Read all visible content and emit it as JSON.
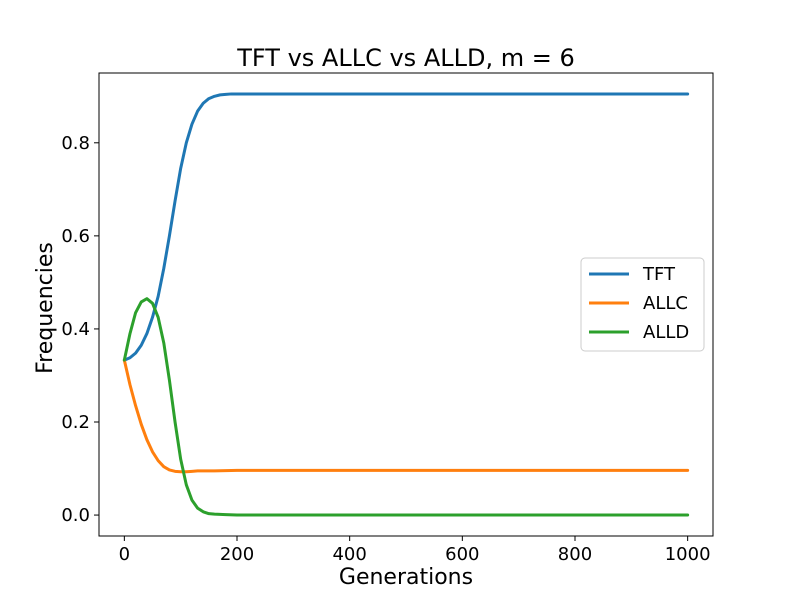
{
  "chart_data": {
    "type": "line",
    "title": "TFT vs ALLC vs ALLD, m = 6",
    "xlabel": "Generations",
    "ylabel": "Frequencies",
    "xlim": [
      -45,
      1045
    ],
    "ylim": [
      -0.045,
      0.95
    ],
    "xticks": [
      0,
      200,
      400,
      600,
      800,
      1000
    ],
    "xtick_labels": [
      "0",
      "200",
      "400",
      "600",
      "800",
      "1000"
    ],
    "yticks": [
      0.0,
      0.2,
      0.4,
      0.6,
      0.8
    ],
    "ytick_labels": [
      "0.0",
      "0.2",
      "0.4",
      "0.6",
      "0.8"
    ],
    "grid": false,
    "legend_position": "center-right",
    "series": [
      {
        "name": "TFT",
        "color": "#1f77b4",
        "x": [
          0,
          10,
          20,
          30,
          40,
          50,
          60,
          70,
          80,
          90,
          100,
          110,
          120,
          130,
          140,
          150,
          160,
          170,
          180,
          190,
          200,
          220,
          250,
          300,
          400,
          500,
          600,
          700,
          800,
          900,
          1000
        ],
        "y": [
          0.333,
          0.338,
          0.348,
          0.365,
          0.39,
          0.425,
          0.47,
          0.53,
          0.6,
          0.675,
          0.745,
          0.8,
          0.84,
          0.868,
          0.885,
          0.895,
          0.9,
          0.903,
          0.904,
          0.905,
          0.905,
          0.905,
          0.905,
          0.905,
          0.905,
          0.905,
          0.905,
          0.905,
          0.905,
          0.905,
          0.905
        ]
      },
      {
        "name": "ALLC",
        "color": "#ff7f0e",
        "x": [
          0,
          10,
          20,
          30,
          40,
          50,
          60,
          70,
          80,
          90,
          100,
          110,
          120,
          130,
          140,
          160,
          200,
          250,
          300,
          400,
          500,
          600,
          700,
          800,
          900,
          1000
        ],
        "y": [
          0.333,
          0.28,
          0.235,
          0.195,
          0.162,
          0.136,
          0.117,
          0.104,
          0.097,
          0.094,
          0.093,
          0.093,
          0.094,
          0.095,
          0.095,
          0.095,
          0.096,
          0.096,
          0.096,
          0.096,
          0.096,
          0.096,
          0.096,
          0.096,
          0.096,
          0.096
        ]
      },
      {
        "name": "ALLD",
        "color": "#2ca02c",
        "x": [
          0,
          10,
          20,
          30,
          40,
          50,
          60,
          70,
          80,
          90,
          100,
          110,
          120,
          130,
          140,
          150,
          160,
          180,
          200,
          250,
          300,
          400,
          500,
          600,
          700,
          800,
          900,
          1000
        ],
        "y": [
          0.333,
          0.39,
          0.435,
          0.458,
          0.465,
          0.455,
          0.425,
          0.37,
          0.29,
          0.2,
          0.12,
          0.065,
          0.032,
          0.015,
          0.007,
          0.003,
          0.002,
          0.001,
          0.0,
          0.0,
          0.0,
          0.0,
          0.0,
          0.0,
          0.0,
          0.0,
          0.0,
          0.0
        ]
      }
    ]
  }
}
